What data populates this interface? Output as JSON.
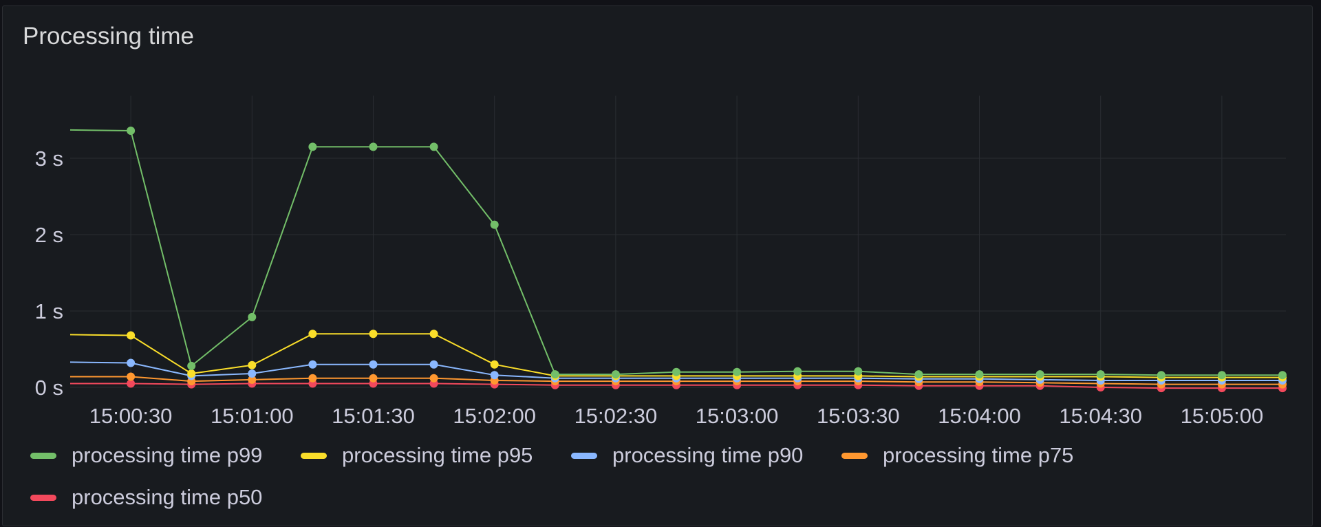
{
  "panel": {
    "title": "Processing time"
  },
  "chart_data": {
    "type": "line",
    "title": "Processing time",
    "xlabel": "",
    "ylabel": "",
    "x_ticks": [
      "15:00:30",
      "15:01:00",
      "15:01:30",
      "15:02:00",
      "15:02:30",
      "15:03:00",
      "15:03:30",
      "15:04:00",
      "15:04:30",
      "15:05:00"
    ],
    "y_ticks": [
      "0 s",
      "1 s",
      "2 s",
      "3 s"
    ],
    "ylim": [
      0,
      3.8
    ],
    "grid": true,
    "legend_position": "bottom",
    "x": [
      "15:00:15",
      "15:00:30",
      "15:00:45",
      "15:01:00",
      "15:01:15",
      "15:01:30",
      "15:01:45",
      "15:02:00",
      "15:02:15",
      "15:02:30",
      "15:02:45",
      "15:03:00",
      "15:03:15",
      "15:03:30",
      "15:03:45",
      "15:04:00",
      "15:04:15",
      "15:04:30",
      "15:04:45",
      "15:05:00",
      "15:05:15"
    ],
    "series": [
      {
        "name": "processing time p99",
        "color": "#73bf69",
        "markers_from": 1,
        "values": [
          3.37,
          3.36,
          0.28,
          0.92,
          3.15,
          3.15,
          3.15,
          2.13,
          0.17,
          0.17,
          0.2,
          0.2,
          0.21,
          0.21,
          0.17,
          0.17,
          0.17,
          0.17,
          0.16,
          0.16,
          0.16
        ]
      },
      {
        "name": "processing time p95",
        "color": "#fade2a",
        "markers_from": 1,
        "values": [
          0.69,
          0.68,
          0.18,
          0.29,
          0.7,
          0.7,
          0.7,
          0.3,
          0.15,
          0.15,
          0.15,
          0.15,
          0.15,
          0.15,
          0.14,
          0.14,
          0.14,
          0.14,
          0.13,
          0.13,
          0.13
        ]
      },
      {
        "name": "processing time p90",
        "color": "#8ab8ff",
        "markers_from": 1,
        "values": [
          0.33,
          0.32,
          0.15,
          0.18,
          0.3,
          0.3,
          0.3,
          0.16,
          0.12,
          0.12,
          0.12,
          0.12,
          0.12,
          0.12,
          0.11,
          0.11,
          0.1,
          0.09,
          0.09,
          0.09,
          0.09
        ]
      },
      {
        "name": "processing time p75",
        "color": "#ff9830",
        "markers_from": 1,
        "values": [
          0.14,
          0.14,
          0.08,
          0.1,
          0.12,
          0.12,
          0.12,
          0.09,
          0.08,
          0.08,
          0.08,
          0.08,
          0.08,
          0.08,
          0.07,
          0.07,
          0.06,
          0.05,
          0.04,
          0.04,
          0.04
        ]
      },
      {
        "name": "processing time p50",
        "color": "#f2495c",
        "markers_from": 1,
        "values": [
          0.05,
          0.05,
          0.04,
          0.05,
          0.05,
          0.05,
          0.05,
          0.04,
          0.03,
          0.03,
          0.03,
          0.03,
          0.03,
          0.03,
          0.02,
          0.02,
          0.02,
          0.0,
          -0.01,
          -0.01,
          -0.01
        ]
      }
    ]
  }
}
